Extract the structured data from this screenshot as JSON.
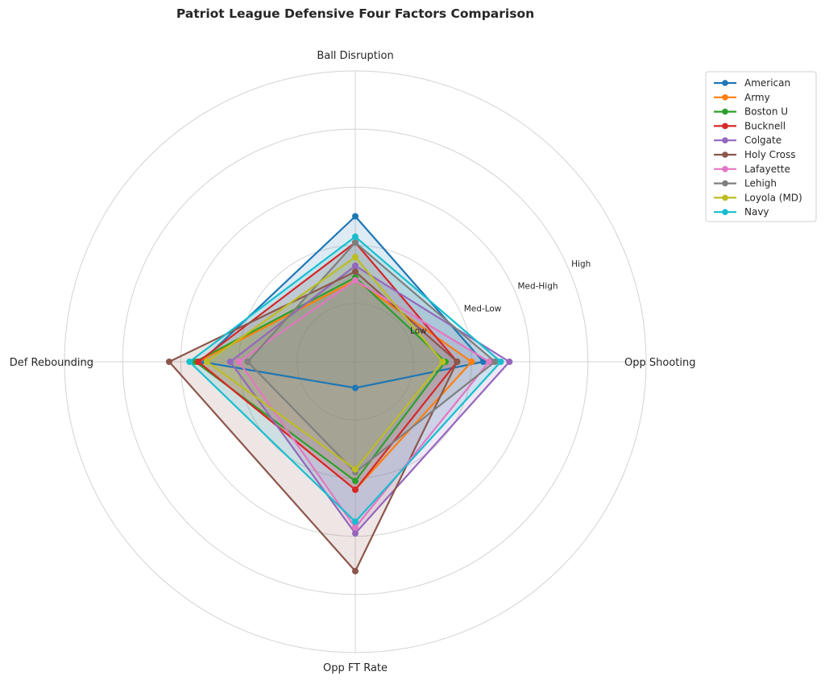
{
  "chart_data": {
    "type": "radar",
    "title": "Patriot League Defensive Four Factors Comparison",
    "axes": [
      "Ball Disruption",
      "Opp Shooting",
      "Opp FT Rate",
      "Def Rebounding"
    ],
    "ring_labels": [
      "Low",
      "Med-Low",
      "Med-High",
      "High"
    ],
    "rlim": [
      0,
      5
    ],
    "grid": true,
    "legend_position": "top-right",
    "series": [
      {
        "name": "American",
        "color": "#1f77b4",
        "values": [
          2.5,
          2.2,
          0.45,
          2.65
        ]
      },
      {
        "name": "Army",
        "color": "#ff7f0e",
        "values": [
          1.4,
          2.0,
          2.2,
          2.7
        ]
      },
      {
        "name": "Boston U",
        "color": "#2ca02c",
        "values": [
          1.45,
          1.55,
          2.05,
          2.75
        ]
      },
      {
        "name": "Bucknell",
        "color": "#d62728",
        "values": [
          2.05,
          1.75,
          2.2,
          2.7
        ]
      },
      {
        "name": "Colgate",
        "color": "#9467bd",
        "values": [
          1.65,
          2.65,
          2.95,
          2.15
        ]
      },
      {
        "name": "Holy Cross",
        "color": "#8c564b",
        "values": [
          1.55,
          1.75,
          3.6,
          3.2
        ]
      },
      {
        "name": "Lafayette",
        "color": "#e377c2",
        "values": [
          1.4,
          2.3,
          2.85,
          2.0
        ]
      },
      {
        "name": "Lehigh",
        "color": "#7f7f7f",
        "values": [
          2.05,
          2.4,
          1.9,
          1.85
        ]
      },
      {
        "name": "Loyola (MD)",
        "color": "#bcbd22",
        "values": [
          1.8,
          1.5,
          1.85,
          2.55
        ]
      },
      {
        "name": "Navy",
        "color": "#17becf",
        "values": [
          2.15,
          2.5,
          2.75,
          2.85
        ]
      }
    ]
  }
}
